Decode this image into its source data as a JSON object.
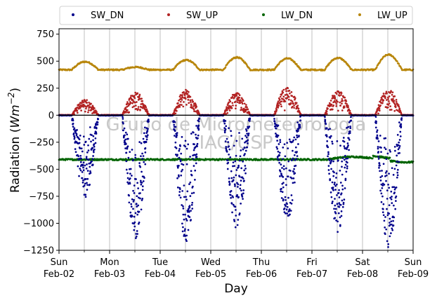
{
  "chart_data": {
    "type": "scatter",
    "xlabel": "Day",
    "ylabel_prefix": "Radiation (",
    "ylabel_unit": "Wm",
    "ylabel_exp": "−2",
    "ylabel_suffix": ")",
    "ylim": [
      -1250,
      800
    ],
    "xlim_days": [
      0,
      7
    ],
    "yticks": [
      {
        "value": 750,
        "label": "750"
      },
      {
        "value": 500,
        "label": "500"
      },
      {
        "value": 250,
        "label": "250"
      },
      {
        "value": 0,
        "label": "0"
      },
      {
        "value": -250,
        "label": "−250"
      },
      {
        "value": -500,
        "label": "−500"
      },
      {
        "value": -750,
        "label": "−750"
      },
      {
        "value": -1000,
        "label": "−1000"
      },
      {
        "value": -1250,
        "label": "−1250"
      }
    ],
    "xticks": [
      {
        "day": 0,
        "weekday": "Sun",
        "date": "Feb-02"
      },
      {
        "day": 1,
        "weekday": "Mon",
        "date": "Feb-03"
      },
      {
        "day": 2,
        "weekday": "Tue",
        "date": "Feb-04"
      },
      {
        "day": 3,
        "weekday": "Wed",
        "date": "Feb-05"
      },
      {
        "day": 4,
        "weekday": "Thu",
        "date": "Feb-06"
      },
      {
        "day": 5,
        "weekday": "Fri",
        "date": "Feb-07"
      },
      {
        "day": 6,
        "weekday": "Sat",
        "date": "Feb-08"
      },
      {
        "day": 7,
        "weekday": "Sun",
        "date": "Feb-09"
      }
    ],
    "grid": "vertical, at half-day intervals",
    "legend_position": "top, above plot, 4 columns",
    "watermark": "Grupo de Micrometeorologia IAG/USP",
    "series": [
      {
        "name": "SW_DN",
        "color": "#00008b",
        "daily_peaks": [
          {
            "day": "Feb-02",
            "peak_min": -760
          },
          {
            "day": "Feb-03",
            "peak_min": -1140
          },
          {
            "day": "Feb-04",
            "peak_min": -1170
          },
          {
            "day": "Feb-05",
            "peak_min": -1050
          },
          {
            "day": "Feb-06",
            "peak_min": -980
          },
          {
            "day": "Feb-07",
            "peak_min": -1090
          },
          {
            "day": "Feb-08",
            "peak_min": -1230
          }
        ],
        "night_value": 0
      },
      {
        "name": "SW_UP",
        "color": "#b22222",
        "daily_peaks": [
          {
            "day": "Feb-02",
            "peak_max": 150
          },
          {
            "day": "Feb-03",
            "peak_max": 215
          },
          {
            "day": "Feb-04",
            "peak_max": 240
          },
          {
            "day": "Feb-05",
            "peak_max": 210
          },
          {
            "day": "Feb-06",
            "peak_max": 270
          },
          {
            "day": "Feb-07",
            "peak_max": 230
          },
          {
            "day": "Feb-08",
            "peak_max": 240
          }
        ],
        "night_value": 0
      },
      {
        "name": "LW_DN",
        "color": "#006400",
        "baseline": -410,
        "range": [
          -450,
          -360
        ]
      },
      {
        "name": "LW_UP",
        "color": "#b8860b",
        "baseline": 420,
        "daily_peaks": [
          {
            "day": "Feb-02",
            "peak_max": 495
          },
          {
            "day": "Feb-03",
            "peak_max": 445
          },
          {
            "day": "Feb-04",
            "peak_max": 510
          },
          {
            "day": "Feb-05",
            "peak_max": 535
          },
          {
            "day": "Feb-06",
            "peak_max": 525
          },
          {
            "day": "Feb-07",
            "peak_max": 530
          },
          {
            "day": "Feb-08",
            "peak_max": 560
          }
        ]
      }
    ]
  }
}
